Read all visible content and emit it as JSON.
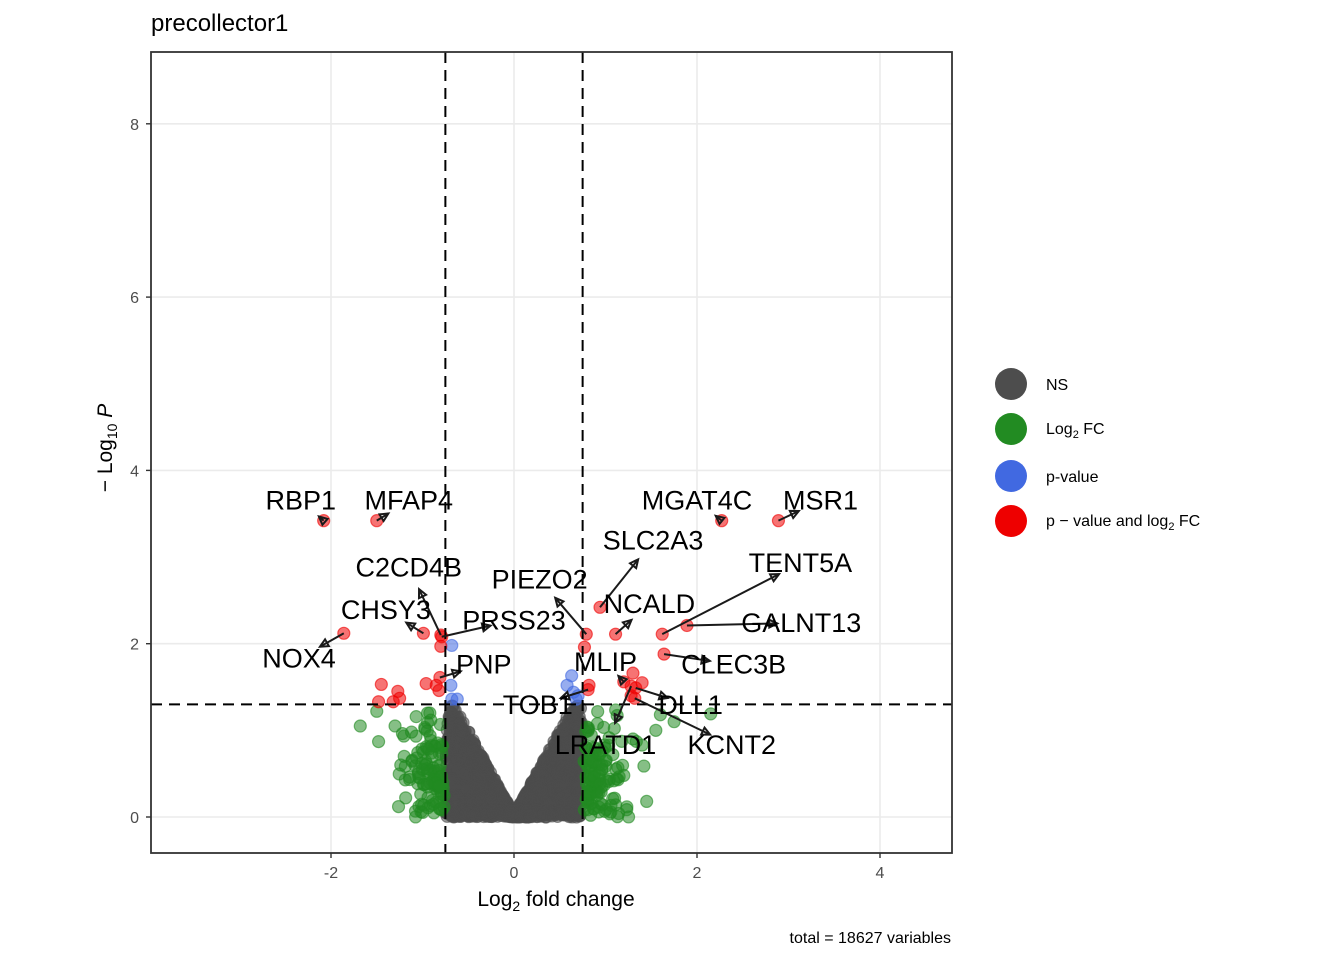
{
  "chart_data": {
    "type": "scatter",
    "title": "precollector1",
    "xlabel": "Log2 fold change",
    "xlabel_main": "Log",
    "xlabel_sub": "2",
    "xlabel_rest": " fold change",
    "ylabel_main": "− Log",
    "ylabel_sub": "10",
    "ylabel_italic": "P",
    "xlim": [
      -4,
      4.75
    ],
    "ylim": [
      -0.4,
      8.8
    ],
    "x_ticks": [
      -2,
      0,
      2,
      4
    ],
    "x_tick_labels": [
      "-2",
      "0",
      "2",
      "4"
    ],
    "y_ticks": [
      0,
      2,
      4,
      6,
      8
    ],
    "y_tick_labels": [
      "0",
      "2",
      "4",
      "6",
      "8"
    ],
    "grid": true,
    "fc_cutoff": 0.75,
    "p_cutoff_neglog10": 1.3,
    "caption": "total = 18627 variables",
    "legend": {
      "position": "right",
      "entries": [
        {
          "key": "NS",
          "label": "NS",
          "color": "#4d4d4d"
        },
        {
          "key": "log2fc",
          "label_main": "Log",
          "label_sub": "2",
          "label_rest": " FC",
          "color": "#228b22"
        },
        {
          "key": "pvalue",
          "label": "p-value",
          "color": "#4169e1"
        },
        {
          "key": "both",
          "label_main": "p − value and log",
          "label_sub": "2",
          "label_rest": " FC",
          "color": "#ee0000"
        }
      ]
    },
    "colors": {
      "NS": "#4d4d4d",
      "log2fc": "#228b22",
      "pvalue": "#4169e1",
      "both": "#ee0000"
    },
    "labeled_points": [
      {
        "gene": "RBP1",
        "x": -2.08,
        "y": 3.42,
        "group": "both",
        "lx": -2.33,
        "ly": 3.65
      },
      {
        "gene": "MFAP4",
        "x": -1.5,
        "y": 3.42,
        "group": "both",
        "lx": -1.15,
        "ly": 3.65
      },
      {
        "gene": "MGAT4C",
        "x": 2.27,
        "y": 3.42,
        "group": "both",
        "lx": 2.0,
        "ly": 3.65
      },
      {
        "gene": "MSR1",
        "x": 2.89,
        "y": 3.42,
        "group": "both",
        "lx": 3.35,
        "ly": 3.65
      },
      {
        "gene": "SLC2A3",
        "x": 0.94,
        "y": 2.42,
        "group": "both",
        "lx": 1.52,
        "ly": 3.19
      },
      {
        "gene": "TENT5A",
        "x": 1.62,
        "y": 2.11,
        "group": "both",
        "lx": 3.13,
        "ly": 2.93
      },
      {
        "gene": "PIEZO2",
        "x": 0.79,
        "y": 2.11,
        "group": "both",
        "lx": 0.28,
        "ly": 2.74
      },
      {
        "gene": "NCALD",
        "x": 1.11,
        "y": 2.11,
        "group": "both",
        "lx": 1.48,
        "ly": 2.46
      },
      {
        "gene": "GALNT13",
        "x": 1.89,
        "y": 2.21,
        "group": "both",
        "lx": 3.14,
        "ly": 2.24
      },
      {
        "gene": "C2CD4B",
        "x": -0.8,
        "y": 2.1,
        "group": "both",
        "lx": -1.15,
        "ly": 2.88
      },
      {
        "gene": "CHSY3",
        "x": -0.99,
        "y": 2.12,
        "group": "both",
        "lx": -1.4,
        "ly": 2.39
      },
      {
        "gene": "PRSS23",
        "x": -0.79,
        "y": 2.08,
        "group": "both",
        "lx": 0.0,
        "ly": 2.27
      },
      {
        "gene": "NOX4",
        "x": -1.86,
        "y": 2.12,
        "group": "both",
        "lx": -2.35,
        "ly": 1.83
      },
      {
        "gene": "PNP",
        "x": -0.81,
        "y": 1.61,
        "group": "both",
        "lx": -0.33,
        "ly": 1.76
      },
      {
        "gene": "MLIP",
        "x": 1.2,
        "y": 1.56,
        "group": "both",
        "lx": 1.0,
        "ly": 1.79
      },
      {
        "gene": "CLEC3B",
        "x": 1.64,
        "y": 1.88,
        "group": "both",
        "lx": 2.4,
        "ly": 1.76
      },
      {
        "gene": "DLL1",
        "x": 1.33,
        "y": 1.49,
        "group": "both",
        "lx": 1.93,
        "ly": 1.29
      },
      {
        "gene": "TOB1",
        "x": 0.81,
        "y": 1.47,
        "group": "both",
        "lx": 0.26,
        "ly": 1.29
      },
      {
        "gene": "LRATD1",
        "x": 1.28,
        "y": 1.51,
        "group": "both",
        "lx": 1.0,
        "ly": 0.83
      },
      {
        "gene": "KCNT2",
        "x": 1.32,
        "y": 1.37,
        "group": "both",
        "lx": 2.38,
        "ly": 0.83
      }
    ],
    "extra_significant_points": [
      {
        "x": -1.45,
        "y": 1.53
      },
      {
        "x": -1.27,
        "y": 1.45
      },
      {
        "x": -0.96,
        "y": 1.54
      },
      {
        "x": -0.85,
        "y": 1.52
      },
      {
        "x": -0.82,
        "y": 1.46
      },
      {
        "x": -1.48,
        "y": 1.33
      },
      {
        "x": -1.32,
        "y": 1.33
      },
      {
        "x": -1.25,
        "y": 1.37
      },
      {
        "x": -0.8,
        "y": 1.97
      },
      {
        "x": 0.77,
        "y": 1.96
      },
      {
        "x": 0.82,
        "y": 1.52
      },
      {
        "x": 1.3,
        "y": 1.66
      },
      {
        "x": 1.4,
        "y": 1.55
      },
      {
        "x": 1.28,
        "y": 1.4
      }
    ],
    "pvalue_points": [
      {
        "x": -0.68,
        "y": 1.98
      },
      {
        "x": -0.69,
        "y": 1.52
      },
      {
        "x": -0.68,
        "y": 1.36
      },
      {
        "x": -0.62,
        "y": 1.36
      },
      {
        "x": 0.63,
        "y": 1.63
      },
      {
        "x": 0.58,
        "y": 1.52
      },
      {
        "x": 0.65,
        "y": 1.44
      },
      {
        "x": 0.68,
        "y": 1.36
      },
      {
        "x": 0.7,
        "y": 1.4
      }
    ]
  }
}
